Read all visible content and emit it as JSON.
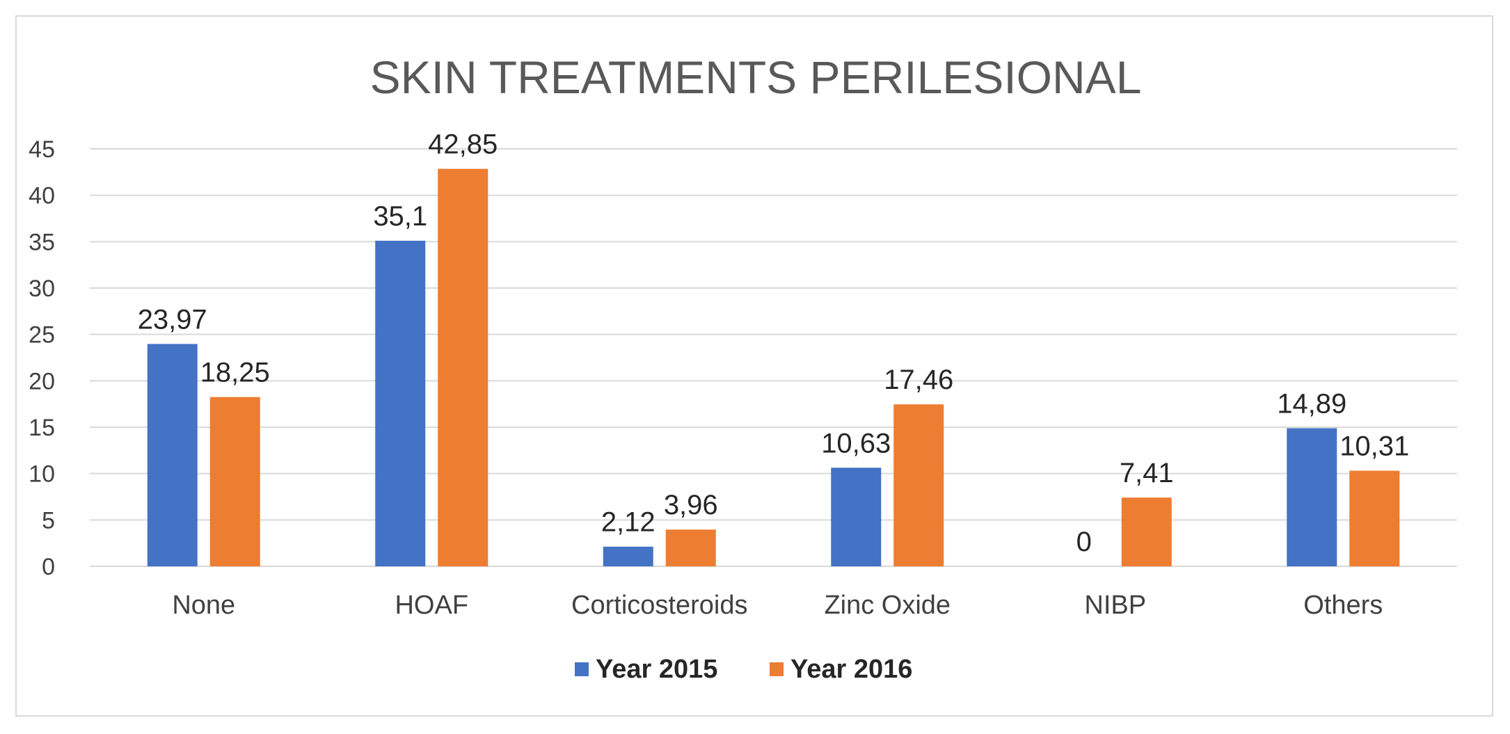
{
  "chart_data": {
    "type": "bar",
    "title": "SKIN TREATMENTS PERILESIONAL",
    "categories": [
      "None",
      "HOAF",
      "Corticosteroids",
      "Zinc Oxide",
      "NIBP",
      "Others"
    ],
    "series": [
      {
        "name": "Year 2015",
        "color": "#4472c4",
        "values": [
          23.97,
          35.1,
          2.12,
          10.63,
          0,
          14.89
        ],
        "labels": [
          "23,97",
          "35,1",
          "2,12",
          "10,63",
          "0",
          "14,89"
        ]
      },
      {
        "name": "Year 2016",
        "color": "#ed7d31",
        "values": [
          18.25,
          42.85,
          3.96,
          17.46,
          7.41,
          10.31
        ],
        "labels": [
          "18,25",
          "42,85",
          "3,96",
          "17,46",
          "7,41",
          "10,31"
        ]
      }
    ],
    "xlabel": "",
    "ylabel": "",
    "ylim": [
      0,
      45
    ],
    "yticks": [
      0,
      5,
      10,
      15,
      20,
      25,
      30,
      35,
      40,
      45
    ],
    "grid": true,
    "legend_position": "bottom"
  }
}
